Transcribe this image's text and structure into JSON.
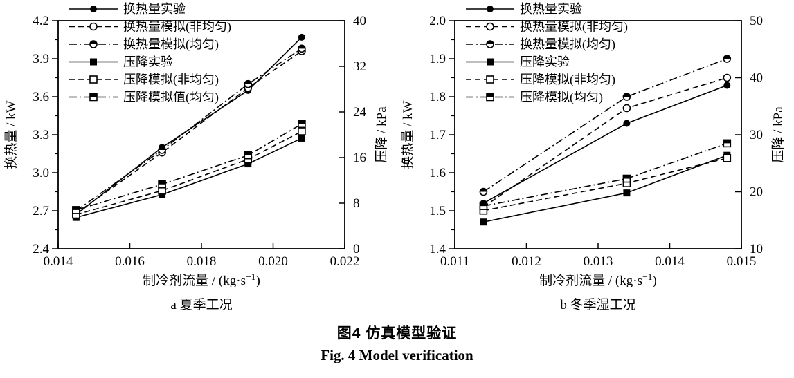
{
  "figure": {
    "caption_zh": "图4  仿真模型验证",
    "caption_en": "Fig. 4  Model verification"
  },
  "chart_data": [
    {
      "id": "a",
      "type": "line",
      "subtitle": "a 夏季工况",
      "xlabel": {
        "pre": "制冷剂流量 / (kg·s",
        "sup": "−1",
        "post": ")"
      },
      "ylabel_left": "换热量 / kW",
      "ylabel_right": "压降 / kPa",
      "x": {
        "min": 0.014,
        "max": 0.022,
        "ticks": [
          {
            "v": 0.014,
            "t": "0.014"
          },
          {
            "v": 0.016,
            "t": "0.016"
          },
          {
            "v": 0.018,
            "t": "0.018"
          },
          {
            "v": 0.02,
            "t": "0.020"
          },
          {
            "v": 0.022,
            "t": "0.022"
          }
        ]
      },
      "y_left": {
        "min": 2.4,
        "max": 4.2,
        "ticks": [
          {
            "v": 2.4,
            "t": "2.4"
          },
          {
            "v": 2.7,
            "t": "2.7"
          },
          {
            "v": 3.0,
            "t": "3.0"
          },
          {
            "v": 3.3,
            "t": "3.3"
          },
          {
            "v": 3.6,
            "t": "3.6"
          },
          {
            "v": 3.9,
            "t": "3.9"
          },
          {
            "v": 4.2,
            "t": "4.2"
          }
        ],
        "minor": [
          2.55,
          2.85,
          3.15,
          3.45,
          3.75,
          4.05
        ]
      },
      "y_right": {
        "min": 0,
        "max": 40,
        "ticks": [
          {
            "v": 0,
            "t": "0"
          },
          {
            "v": 8,
            "t": "8"
          },
          {
            "v": 16,
            "t": "16"
          },
          {
            "v": 24,
            "t": "24"
          },
          {
            "v": 32,
            "t": "32"
          },
          {
            "v": 40,
            "t": "40"
          }
        ]
      },
      "series": [
        {
          "name": "换热量实验",
          "axis": "left",
          "marker": "circle-filled",
          "line": "solid",
          "x": [
            0.0145,
            0.0169,
            0.0193,
            0.0208
          ],
          "y": [
            2.67,
            3.2,
            3.65,
            4.07
          ]
        },
        {
          "name": "换热量模拟(非均匀)",
          "axis": "left",
          "marker": "circle-open",
          "line": "dashed",
          "x": [
            0.0145,
            0.0169,
            0.0193,
            0.0208
          ],
          "y": [
            2.68,
            3.16,
            3.67,
            3.96
          ]
        },
        {
          "name": "换热量模拟(均匀)",
          "axis": "left",
          "marker": "circle-half",
          "line": "dashdot",
          "x": [
            0.0145,
            0.0169,
            0.0193,
            0.0208
          ],
          "y": [
            2.7,
            3.18,
            3.7,
            3.98
          ]
        },
        {
          "name": "压降实验",
          "axis": "right",
          "marker": "square-filled",
          "line": "solid",
          "x": [
            0.0145,
            0.0169,
            0.0193,
            0.0208
          ],
          "y": [
            5.5,
            9.5,
            14.9,
            19.4
          ]
        },
        {
          "name": "压降模拟(非均匀)",
          "axis": "right",
          "marker": "square-open",
          "line": "dashed",
          "x": [
            0.0145,
            0.0169,
            0.0193,
            0.0208
          ],
          "y": [
            6.0,
            10.2,
            15.7,
            20.6
          ]
        },
        {
          "name": "压降模拟值(均匀)",
          "axis": "right",
          "marker": "square-half",
          "line": "dashdot",
          "x": [
            0.0145,
            0.0169,
            0.0193,
            0.0208
          ],
          "y": [
            6.8,
            11.3,
            16.4,
            21.9
          ]
        }
      ]
    },
    {
      "id": "b",
      "type": "line",
      "subtitle": "b 冬季湿工况",
      "xlabel": {
        "pre": "制冷剂流量 / (kg·s",
        "sup": "−1",
        "post": ")"
      },
      "ylabel_left": "换热量 / kW",
      "ylabel_right": "压降 / kPa",
      "x": {
        "min": 0.011,
        "max": 0.015,
        "ticks": [
          {
            "v": 0.011,
            "t": "0.011"
          },
          {
            "v": 0.012,
            "t": "0.012"
          },
          {
            "v": 0.013,
            "t": "0.013"
          },
          {
            "v": 0.014,
            "t": "0.014"
          },
          {
            "v": 0.015,
            "t": "0.015"
          }
        ]
      },
      "y_left": {
        "min": 1.4,
        "max": 2.0,
        "ticks": [
          {
            "v": 1.4,
            "t": "1.4"
          },
          {
            "v": 1.5,
            "t": "1.5"
          },
          {
            "v": 1.6,
            "t": "1.6"
          },
          {
            "v": 1.7,
            "t": "1.7"
          },
          {
            "v": 1.8,
            "t": "1.8"
          },
          {
            "v": 1.9,
            "t": "1.9"
          },
          {
            "v": 2.0,
            "t": "2.0"
          }
        ],
        "minor": [
          1.45,
          1.55,
          1.65,
          1.75,
          1.85,
          1.95
        ]
      },
      "y_right": {
        "min": 10,
        "max": 50,
        "ticks": [
          {
            "v": 10,
            "t": "10"
          },
          {
            "v": 20,
            "t": "20"
          },
          {
            "v": 30,
            "t": "30"
          },
          {
            "v": 40,
            "t": "40"
          },
          {
            "v": 50,
            "t": "50"
          }
        ]
      },
      "series": [
        {
          "name": "换热量实验",
          "axis": "left",
          "marker": "circle-filled",
          "line": "solid",
          "x": [
            0.0114,
            0.0134,
            0.0148
          ],
          "y": [
            1.52,
            1.73,
            1.83
          ]
        },
        {
          "name": "换热量模拟(非均匀)",
          "axis": "left",
          "marker": "circle-open",
          "line": "dashed",
          "x": [
            0.0114,
            0.0134,
            0.0148
          ],
          "y": [
            1.51,
            1.77,
            1.85
          ]
        },
        {
          "name": "换热量模拟(均匀)",
          "axis": "left",
          "marker": "circle-half",
          "line": "dashdot",
          "x": [
            0.0114,
            0.0134,
            0.0148
          ],
          "y": [
            1.55,
            1.8,
            1.9
          ]
        },
        {
          "name": "压降实验",
          "axis": "right",
          "marker": "square-filled",
          "line": "solid",
          "x": [
            0.0114,
            0.0134,
            0.0148
          ],
          "y": [
            14.7,
            19.8,
            26.4
          ]
        },
        {
          "name": "压降模拟(非均匀)",
          "axis": "right",
          "marker": "square-open",
          "line": "dashed",
          "x": [
            0.0114,
            0.0134,
            0.0148
          ],
          "y": [
            16.7,
            21.5,
            25.9
          ]
        },
        {
          "name": "压降模拟(均匀)",
          "axis": "right",
          "marker": "square-half",
          "line": "dashdot",
          "x": [
            0.0114,
            0.0134,
            0.0148
          ],
          "y": [
            17.5,
            22.3,
            28.5
          ]
        }
      ]
    }
  ]
}
